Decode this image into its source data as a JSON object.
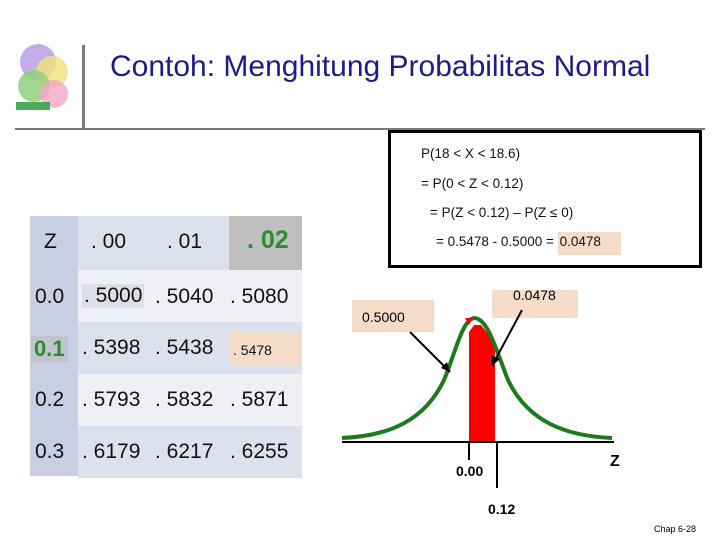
{
  "slide": {
    "title": "Contoh: Menghitung Probabilitas Normal",
    "footer": "Chap 6-28"
  },
  "calculation": {
    "line1": "P(18 < X < 18.6)",
    "line2": "= P(0 < Z < 0.12)",
    "line3": "= P(Z < 0.12) – P(Z ≤ 0)",
    "line4_prefix": "= 0.5478 - 0.5000 = ",
    "line4_result": "0.0478"
  },
  "z_table": {
    "headers": [
      "Z",
      ". 00",
      ". 01",
      ". 02"
    ],
    "rows": [
      {
        "z": "0.0",
        "c00": ". 5000",
        "c01": ". 5040",
        "c02": ". 5080"
      },
      {
        "z": "0.1",
        "c00": ". 5398",
        "c01": ". 5438",
        "c02": ". 5478"
      },
      {
        "z": "0.2",
        "c00": ". 5793",
        "c01": ". 5832",
        "c02": ". 5871"
      },
      {
        "z": "0.3",
        "c00": ". 6179",
        "c01": ". 6217",
        "c02": ". 6255"
      }
    ]
  },
  "curve": {
    "label_left_area": "0.5000",
    "label_shaded_area": "0.0478",
    "tick_zero": "0.00",
    "tick_012": "0.12",
    "axis_label": "Z",
    "colors": {
      "curve": "#1e7a1e",
      "shade": "#ff0000",
      "label_bg": "#f4dcc8"
    }
  }
}
